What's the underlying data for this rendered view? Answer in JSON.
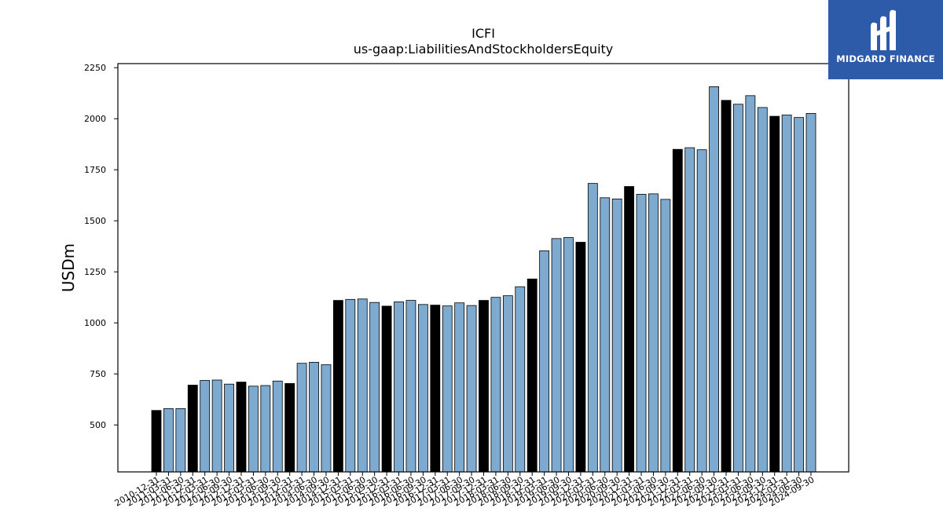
{
  "chart_data": {
    "type": "bar",
    "title": "ICFI",
    "subtitle": "us-gaap:LiabilitiesAndStockholdersEquity",
    "xlabel": "",
    "ylabel": "USDm",
    "ylim": [
      270,
      2270
    ],
    "yticks": [
      500,
      750,
      1000,
      1250,
      1500,
      1750,
      2000,
      2250
    ],
    "categories": [
      "2010-12-31",
      "2011-03-31",
      "2011-06-30",
      "2011-12-31",
      "2012-03-31",
      "2012-06-30",
      "2012-09-30",
      "2012-12-31",
      "2013-03-31",
      "2013-06-30",
      "2013-09-30",
      "2013-12-31",
      "2014-03-31",
      "2014-06-30",
      "2014-09-30",
      "2014-12-31",
      "2015-03-31",
      "2015-06-30",
      "2015-09-30",
      "2015-12-31",
      "2016-03-31",
      "2016-06-30",
      "2016-09-30",
      "2016-12-31",
      "2017-03-31",
      "2017-06-30",
      "2017-09-30",
      "2017-12-31",
      "2018-03-31",
      "2018-06-30",
      "2018-09-30",
      "2018-12-31",
      "2019-03-31",
      "2019-06-30",
      "2019-09-30",
      "2019-12-31",
      "2020-03-31",
      "2020-06-30",
      "2020-09-30",
      "2020-12-31",
      "2021-03-31",
      "2021-06-30",
      "2021-09-30",
      "2021-12-31",
      "2022-03-31",
      "2022-06-30",
      "2022-09-30",
      "2022-12-31",
      "2023-03-31",
      "2023-06-30",
      "2023-09-30",
      "2023-12-31",
      "2024-03-31",
      "2024-06-30",
      "2024-09-30"
    ],
    "values": [
      571,
      580,
      580,
      695,
      718,
      720,
      700,
      710,
      690,
      693,
      715,
      703,
      802,
      807,
      795,
      1110,
      1115,
      1117,
      1100,
      1082,
      1103,
      1110,
      1090,
      1087,
      1083,
      1098,
      1085,
      1110,
      1125,
      1133,
      1177,
      1215,
      1353,
      1413,
      1418,
      1395,
      1683,
      1613,
      1607,
      1668,
      1630,
      1632,
      1605,
      1850,
      1858,
      1848,
      2157,
      2090,
      2071,
      2113,
      2055,
      2012,
      2018,
      2006,
      2026
    ],
    "annual_flags": [
      1,
      0,
      0,
      1,
      0,
      0,
      0,
      1,
      0,
      0,
      0,
      1,
      0,
      0,
      0,
      1,
      0,
      0,
      0,
      1,
      0,
      0,
      0,
      1,
      0,
      0,
      0,
      1,
      0,
      0,
      0,
      1,
      0,
      0,
      0,
      1,
      0,
      0,
      0,
      1,
      0,
      0,
      0,
      1,
      0,
      0,
      0,
      1,
      0,
      0,
      0,
      1,
      0,
      0,
      0
    ],
    "colors": {
      "annual": "#000000",
      "quarterly": "#7eaacf",
      "edge": "#000000"
    },
    "grid": false,
    "legend": "none"
  },
  "logo": {
    "text": "MIDGARD FINANCE",
    "background": "#2d5ba9",
    "icon": "midgard-logo-icon"
  }
}
